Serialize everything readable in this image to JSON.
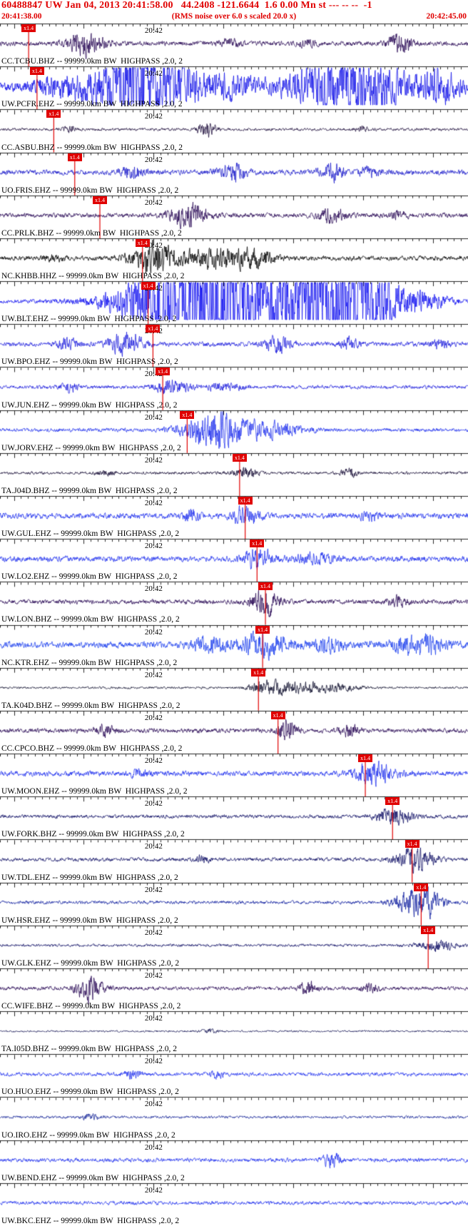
{
  "header": {
    "title": "60488847 UW Jan 04, 2013 20:41:58.00   44.2408 -121.6644  1.6 0.00 Mn st --- -- --  -1",
    "window_start": "20:41:38.00",
    "note": "(RMS noise over 6.0 s scaled 20.0 x)",
    "window_end": "20:42:45.00",
    "accent_color": "#e00000"
  },
  "timeline": {
    "start_label": "20:41:38.00",
    "end_label": "20:42:45.00",
    "duration_s": 67,
    "start_second_of_minute": 38,
    "minute_tick": {
      "label": "20:42",
      "t": 22
    }
  },
  "traces": [
    {
      "label": "CC.TCBU.BHZ -- 99999.0km BW  HIGHPASS ,2.0, 2",
      "color": "#2b0b57",
      "noise": 2.5,
      "pick": {
        "t": 4.1,
        "scale_label": "x1.4"
      },
      "bursts": [
        {
          "t": 12.3,
          "amp": 12,
          "w": 1.8
        },
        {
          "t": 33,
          "amp": 4,
          "w": 1
        },
        {
          "t": 44,
          "amp": 3,
          "w": 1
        },
        {
          "t": 57.2,
          "amp": 10,
          "w": 1.2
        }
      ]
    },
    {
      "label": "UW.PCFR.EHZ -- 99999.0km BW  HIGHPASS ,2.0, 2",
      "color": "#1414e8",
      "noise": 5,
      "pick": {
        "t": 5.3,
        "scale_label": "x1.4"
      },
      "bursts": [
        {
          "t": 8,
          "amp": 8,
          "w": 2
        },
        {
          "t": 20,
          "amp": 45,
          "w": 5
        },
        {
          "t": 33,
          "amp": 10,
          "w": 2.5
        },
        {
          "t": 50,
          "amp": 34,
          "w": 5.5
        },
        {
          "t": 63,
          "amp": 16,
          "w": 2
        }
      ]
    },
    {
      "label": "CC.ASBU.BHZ -- 99999.0km BW  HIGHPASS ,2.0, 2",
      "color": "#1c0b3a",
      "noise": 1.5,
      "pick": {
        "t": 7.7,
        "scale_label": "x1.4"
      },
      "bursts": [
        {
          "t": 10,
          "amp": 2.5,
          "w": 0.8
        },
        {
          "t": 29.6,
          "amp": 8,
          "w": 0.9
        },
        {
          "t": 52,
          "amp": 2.5,
          "w": 0.8
        }
      ]
    },
    {
      "label": "UO.FRIS.EHZ -- 99999.0km BW  HIGHPASS ,2.0, 2",
      "color": "#2222cc",
      "noise": 2.8,
      "pick": {
        "t": 10.7,
        "scale_label": "x1.4"
      },
      "bursts": [
        {
          "t": 19,
          "amp": 7,
          "w": 1.1
        },
        {
          "t": 33.5,
          "amp": 9,
          "w": 1.4
        },
        {
          "t": 47.5,
          "amp": 8,
          "w": 1.2
        },
        {
          "t": 53,
          "amp": 5,
          "w": 1
        }
      ]
    },
    {
      "label": "CC.PRLK.BHZ -- 99999.0km BW  HIGHPASS ,2.0, 2",
      "color": "#2b0b57",
      "noise": 2.5,
      "pick": {
        "t": 14.3,
        "scale_label": "x1.4"
      },
      "bursts": [
        {
          "t": 27,
          "amp": 13,
          "w": 1.8
        },
        {
          "t": 47.5,
          "amp": 8,
          "w": 1.4
        },
        {
          "t": 57,
          "amp": 4,
          "w": 1
        }
      ]
    },
    {
      "label": "NC.KHBB.HHZ -- 99999.0km BW  HIGHPASS ,2.0, 2",
      "color": "#000000",
      "noise": 2.5,
      "pick": {
        "t": 20.4,
        "scale_label": "x1.4"
      },
      "bursts": [
        {
          "t": 8,
          "amp": 3,
          "w": 1
        },
        {
          "t": 22,
          "amp": 16,
          "w": 2.2
        },
        {
          "t": 31,
          "amp": 10,
          "w": 3.5
        },
        {
          "t": 36.5,
          "amp": 7,
          "w": 2
        }
      ]
    },
    {
      "label": "UW.BLT.EHZ -- 99999.0km BW  HIGHPASS ,2.0, 2",
      "color": "#1414f0",
      "noise": 2.2,
      "pick": {
        "t": 21.2,
        "scale_label": "x1.4"
      },
      "bursts": [
        {
          "t": 29,
          "amp": 80,
          "w": 6.5
        },
        {
          "t": 40,
          "amp": 18,
          "w": 3
        },
        {
          "t": 47.5,
          "amp": 80,
          "w": 3.5
        },
        {
          "t": 54,
          "amp": 20,
          "w": 3
        },
        {
          "t": 60,
          "amp": 8,
          "w": 3
        }
      ]
    },
    {
      "label": "UW.BPO.EHZ -- 99999.0km BW  HIGHPASS ,2.0, 2",
      "color": "#2323dd",
      "noise": 2.5,
      "pick": {
        "t": 21.9,
        "scale_label": "x1.4"
      },
      "bursts": [
        {
          "t": 9.7,
          "amp": 7,
          "w": 0.9
        },
        {
          "t": 18,
          "amp": 11,
          "w": 1.8
        },
        {
          "t": 39.8,
          "amp": 9,
          "w": 1.2
        },
        {
          "t": 50,
          "amp": 6,
          "w": 0.9
        },
        {
          "t": 63,
          "amp": 5,
          "w": 0.9
        }
      ]
    },
    {
      "label": "UW.JUN.EHZ -- 99999.0km BW  HIGHPASS ,2.0, 2",
      "color": "#2323dd",
      "noise": 2,
      "pick": {
        "t": 23.3,
        "scale_label": "x1.4"
      },
      "bursts": [
        {
          "t": 10,
          "amp": 5,
          "w": 0.9
        },
        {
          "t": 24.5,
          "amp": 7,
          "w": 1.8
        },
        {
          "t": 32,
          "amp": 4,
          "w": 2
        }
      ]
    },
    {
      "label": "UW.JORV.EHZ -- 99999.0km BW  HIGHPASS ,2.0, 2",
      "color": "#2334ee",
      "noise": 2,
      "pick": {
        "t": 26.8,
        "scale_label": "x1.4"
      },
      "bursts": [
        {
          "t": 31,
          "amp": 19,
          "w": 3.2
        },
        {
          "t": 39,
          "amp": 7,
          "w": 3
        }
      ]
    },
    {
      "label": "TA.J04D.BHZ -- 99999.0km BW  HIGHPASS ,2.0, 2",
      "color": "#140a33",
      "noise": 1.5,
      "pick": {
        "t": 34.3,
        "scale_label": "x1.4"
      },
      "bursts": [
        {
          "t": 15,
          "amp": 2.5,
          "w": 0.9
        },
        {
          "t": 35,
          "amp": 5,
          "w": 1.3
        },
        {
          "t": 50,
          "amp": 4,
          "w": 0.9
        }
      ]
    },
    {
      "label": "UW.GUL.EHZ -- 99999.0km BW  HIGHPASS ,2.0, 2",
      "color": "#2334ee",
      "noise": 3,
      "pick": {
        "t": 35.1,
        "scale_label": "x1.4"
      },
      "bursts": [
        {
          "t": 27.5,
          "amp": 6,
          "w": 0.9
        },
        {
          "t": 35.2,
          "amp": 9,
          "w": 1.3
        },
        {
          "t": 53,
          "amp": 5,
          "w": 0.9
        }
      ]
    },
    {
      "label": "UW.LO2.EHZ -- 99999.0km BW  HIGHPASS ,2.0, 2",
      "color": "#2334ee",
      "noise": 3,
      "pick": {
        "t": 36.8,
        "scale_label": "x1.4"
      },
      "bursts": [
        {
          "t": 37,
          "amp": 11,
          "w": 1.4
        },
        {
          "t": 45,
          "amp": 5,
          "w": 1.8
        }
      ]
    },
    {
      "label": "UW.LON.BHZ -- 99999.0km BW  HIGHPASS ,2.0, 2",
      "color": "#2b0b57",
      "noise": 2.5,
      "pick": {
        "t": 38.0,
        "scale_label": "x1.4"
      },
      "bursts": [
        {
          "t": 38,
          "amp": 13,
          "w": 1.4
        },
        {
          "t": 57,
          "amp": 5,
          "w": 0.9
        }
      ]
    },
    {
      "label": "NC.KTR.EHZ -- 99999.0km BW  HIGHPASS ,2.0, 2",
      "color": "#2345ee",
      "noise": 3.5,
      "pick": {
        "t": 37.6,
        "scale_label": "x1.4"
      },
      "bursts": [
        {
          "t": 30,
          "amp": 8,
          "w": 1.8
        },
        {
          "t": 38,
          "amp": 13,
          "w": 2.2
        },
        {
          "t": 47,
          "amp": 7,
          "w": 1.8
        },
        {
          "t": 60,
          "amp": 12,
          "w": 2.5
        }
      ]
    },
    {
      "label": "TA.K04D.BHZ -- 99999.0km BW  HIGHPASS ,2.0, 2",
      "color": "#10102e",
      "noise": 1.2,
      "pick": {
        "t": 37.0,
        "scale_label": "x1.4"
      },
      "bursts": [
        {
          "t": 38,
          "amp": 7,
          "w": 1.4
        },
        {
          "t": 42.5,
          "amp": 5.5,
          "w": 2.8
        },
        {
          "t": 48.5,
          "amp": 3,
          "w": 2.5
        }
      ]
    },
    {
      "label": "CC.CPCO.BHZ -- 99999.0km BW  HIGHPASS ,2.0, 2",
      "color": "#2b0b57",
      "noise": 2.5,
      "pick": {
        "t": 39.8,
        "scale_label": "x1.4"
      },
      "bursts": [
        {
          "t": 15,
          "amp": 6,
          "w": 0.9
        },
        {
          "t": 41,
          "amp": 11,
          "w": 0.9
        },
        {
          "t": 50,
          "amp": 6,
          "w": 0.9
        }
      ]
    },
    {
      "label": "UW.MOON.EHZ -- 99999.0km BW  HIGHPASS ,2.0, 2",
      "color": "#2334ee",
      "noise": 2.8,
      "pick": {
        "t": 52.3,
        "scale_label": "x1.4"
      },
      "bursts": [
        {
          "t": 20,
          "amp": 4,
          "w": 0.9
        },
        {
          "t": 53.5,
          "amp": 11,
          "w": 2
        }
      ]
    },
    {
      "label": "UW.FORK.BHZ -- 99999.0km BW  HIGHPASS ,2.0, 2",
      "color": "#101066",
      "noise": 2,
      "pick": {
        "t": 56.2,
        "scale_label": "x1.4"
      },
      "bursts": [
        {
          "t": 56.5,
          "amp": 9,
          "w": 1.8
        }
      ]
    },
    {
      "label": "UW.TDL.EHZ -- 99999.0km BW  HIGHPASS ,2.0, 2",
      "color": "#101066",
      "noise": 2,
      "pick": {
        "t": 59.0,
        "scale_label": "x1.4"
      },
      "bursts": [
        {
          "t": 29,
          "amp": 4,
          "w": 0.9
        },
        {
          "t": 59.5,
          "amp": 13,
          "w": 1.8
        }
      ]
    },
    {
      "label": "UW.HSR.EHZ -- 99999.0km BW  HIGHPASS ,2.0, 2",
      "color": "#1020a0",
      "noise": 1.8,
      "pick": {
        "t": 60.3,
        "scale_label": "x1.4"
      },
      "bursts": [
        {
          "t": 60,
          "amp": 18,
          "w": 2
        }
      ]
    },
    {
      "label": "UW.GLK.EHZ -- 99999.0km BW  HIGHPASS ,2.0, 2",
      "color": "#101066",
      "noise": 1.5,
      "pick": {
        "t": 61.3,
        "scale_label": "x1.4"
      },
      "bursts": [
        {
          "t": 62.5,
          "amp": 6,
          "w": 1.8
        }
      ]
    },
    {
      "label": "CC.WIFE.BHZ -- 99999.0km BW  HIGHPASS ,2.0, 2",
      "color": "#2b0b57",
      "noise": 2,
      "pick": null,
      "bursts": [
        {
          "t": 12.8,
          "amp": 13,
          "w": 1.3
        },
        {
          "t": 44,
          "amp": 7,
          "w": 0.9
        },
        {
          "t": 53,
          "amp": 4,
          "w": 0.9
        }
      ]
    },
    {
      "label": "TA.I05D.BHZ -- 99999.0km BW  HIGHPASS ,2.0, 2",
      "color": "#101050",
      "noise": 1,
      "pick": null,
      "bursts": [
        {
          "t": 30,
          "amp": 2,
          "w": 1
        }
      ]
    },
    {
      "label": "UO.HUO.EHZ -- 99999.0km BW  HIGHPASS ,2.0, 2",
      "color": "#2334ee",
      "noise": 2,
      "pick": null,
      "bursts": [
        {
          "t": 19,
          "amp": 4,
          "w": 0.9
        },
        {
          "t": 31,
          "amp": 3,
          "w": 0.9
        }
      ]
    },
    {
      "label": "UO.IRO.EHZ -- 99999.0km BW  HIGHPASS ,2.0, 2",
      "color": "#1a2a99",
      "noise": 1.5,
      "pick": null,
      "bursts": [
        {
          "t": 13,
          "amp": 3,
          "w": 0.9
        }
      ]
    },
    {
      "label": "UW.BEND.EHZ -- 99999.0km BW  HIGHPASS ,2.0, 2",
      "color": "#2334ee",
      "noise": 2.2,
      "pick": null,
      "bursts": [
        {
          "t": 47.5,
          "amp": 7,
          "w": 0.9
        }
      ]
    },
    {
      "label": "UW.BKC.EHZ -- 99999.0km BW  HIGHPASS ,2.0, 2",
      "color": "#2334ee",
      "noise": 2,
      "pick": null,
      "bursts": []
    }
  ]
}
